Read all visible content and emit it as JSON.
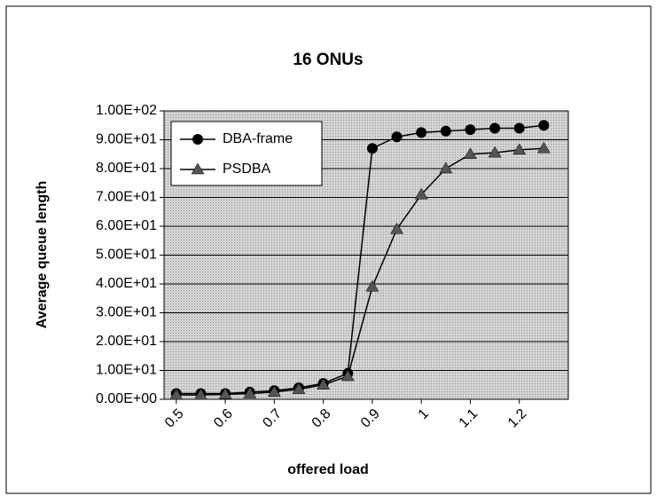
{
  "chart_data": {
    "type": "line",
    "title": "16 ONUs",
    "x_label": "offered load",
    "y_label": "Average queue length",
    "x": [
      0.5,
      0.55,
      0.6,
      0.65,
      0.7,
      0.75,
      0.8,
      0.85,
      0.9,
      0.95,
      1,
      1.05,
      1.1,
      1.15,
      1.2,
      1.25
    ],
    "series": [
      {
        "name": "DBA-frame",
        "color": "#000000",
        "marker": "circle",
        "values": [
          2,
          2,
          2,
          2.5,
          3,
          4,
          5.5,
          9,
          87,
          91,
          92.5,
          93,
          93.5,
          94,
          94,
          95
        ]
      },
      {
        "name": "PSDBA",
        "color": "#555555",
        "marker": "triangle",
        "values": [
          1.5,
          1.5,
          1.7,
          2,
          2.5,
          3.5,
          5,
          8,
          39,
          59,
          71,
          80,
          85,
          85.5,
          86.5,
          87
        ]
      }
    ],
    "xlim": [
      0.475,
      1.3
    ],
    "xticks": [
      0.5,
      0.6,
      0.7,
      0.8,
      0.9,
      1,
      1.1,
      1.2
    ],
    "ylim": [
      0,
      100
    ],
    "yticks": [
      {
        "value": 0,
        "label": "0.00E+00"
      },
      {
        "value": 10,
        "label": "1.00E+01"
      },
      {
        "value": 20,
        "label": "2.00E+01"
      },
      {
        "value": 30,
        "label": "3.00E+01"
      },
      {
        "value": 40,
        "label": "4.00E+01"
      },
      {
        "value": 50,
        "label": "5.00E+01"
      },
      {
        "value": 60,
        "label": "6.00E+01"
      },
      {
        "value": 70,
        "label": "7.00E+01"
      },
      {
        "value": 80,
        "label": "8.00E+01"
      },
      {
        "value": 90,
        "label": "9.00E+01"
      },
      {
        "value": 100,
        "label": "1.00E+02"
      }
    ],
    "grid": true,
    "legend": "upper-left"
  }
}
